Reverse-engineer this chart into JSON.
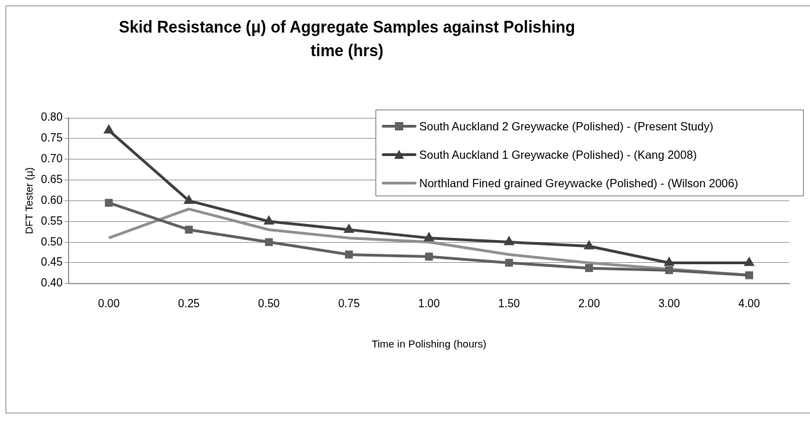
{
  "chart_data": {
    "type": "line",
    "title": "Skid Resistance (μ) of Aggregate Samples against Polishing time (hrs)",
    "xlabel": "Time in Polishing (hours)",
    "ylabel": "DFT Tester (μ)",
    "categories": [
      "0.00",
      "0.25",
      "0.50",
      "0.75",
      "1.00",
      "1.50",
      "2.00",
      "3.00",
      "4.00"
    ],
    "series": [
      {
        "name": "South Auckland 2 Greywacke (Polished) - (Present Study)",
        "color": "#606060",
        "marker": "square",
        "values": [
          0.595,
          0.53,
          0.5,
          0.47,
          0.465,
          0.45,
          0.437,
          0.432,
          0.42
        ]
      },
      {
        "name": "South Auckland 1 Greywacke (Polished) - (Kang 2008)",
        "color": "#404040",
        "marker": "triangle",
        "values": [
          0.77,
          0.6,
          0.55,
          0.53,
          0.51,
          0.5,
          0.49,
          0.45,
          0.45
        ]
      },
      {
        "name": "Northland Fined grained Greywacke (Polished) - (Wilson 2006)",
        "color": "#909090",
        "marker": "none",
        "values": [
          0.51,
          0.58,
          0.53,
          0.51,
          0.5,
          0.47,
          0.45,
          0.435,
          0.42
        ]
      }
    ],
    "ylim": [
      0.4,
      0.8
    ],
    "yticks": [
      {
        "value": 0.4,
        "label": "0.40"
      },
      {
        "value": 0.45,
        "label": "0.45"
      },
      {
        "value": 0.5,
        "label": "0.50"
      },
      {
        "value": 0.55,
        "label": "0.55"
      },
      {
        "value": 0.6,
        "label": "0.60"
      },
      {
        "value": 0.65,
        "label": "0.65"
      },
      {
        "value": 0.7,
        "label": "0.70"
      },
      {
        "value": 0.75,
        "label": "0.75"
      },
      {
        "value": 0.8,
        "label": "0.80"
      }
    ],
    "grid": "y",
    "legend": "top right"
  }
}
